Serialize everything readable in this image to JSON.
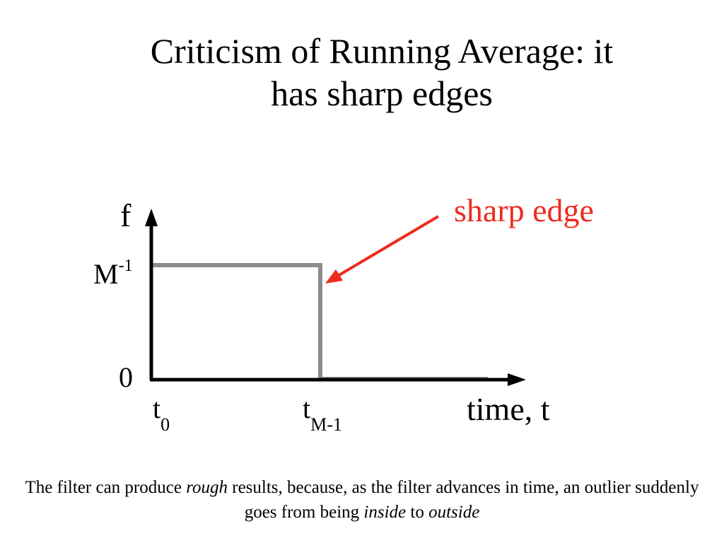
{
  "slide": {
    "title_line1": "Criticism of Running Average: it",
    "title_line2": "has sharp edges"
  },
  "diagram": {
    "y_axis_label": "f",
    "y_value_top_base": "M",
    "y_value_top_exp": "-1",
    "y_value_zero": "0",
    "x_tick_start_base": "t",
    "x_tick_start_sub": "0",
    "x_tick_end_base": "t",
    "x_tick_end_sub": "M-1",
    "x_axis_label": "time, t",
    "annotation": "sharp edge",
    "colors": {
      "axis": "#000000",
      "signal": "#8c8c8c",
      "annotation": "#ee2b1e"
    }
  },
  "caption": {
    "part1": "The filter can produce ",
    "em1": "rough",
    "part2": " results, because, as the filter advances in time, an outlier suddenly goes from being ",
    "em2": "inside",
    "part3": " to ",
    "em3": "outside"
  }
}
